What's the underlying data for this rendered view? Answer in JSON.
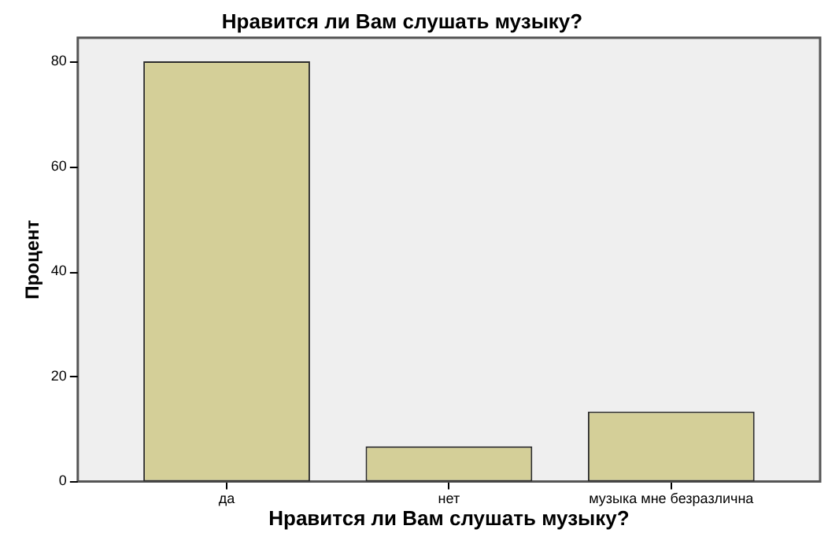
{
  "chart_data": {
    "type": "bar",
    "title": "Нравится ли Вам слушать музыку?",
    "xlabel": "Нравится ли Вам слушать музыку?",
    "ylabel": "Процент",
    "categories": [
      "да",
      "нет",
      "музыка мне безразлична"
    ],
    "values": [
      80,
      6.7,
      13.3
    ],
    "color": "#d4cf98",
    "ylim": [
      0,
      84.5
    ],
    "yticks": [
      0,
      20,
      40,
      60,
      80
    ]
  }
}
